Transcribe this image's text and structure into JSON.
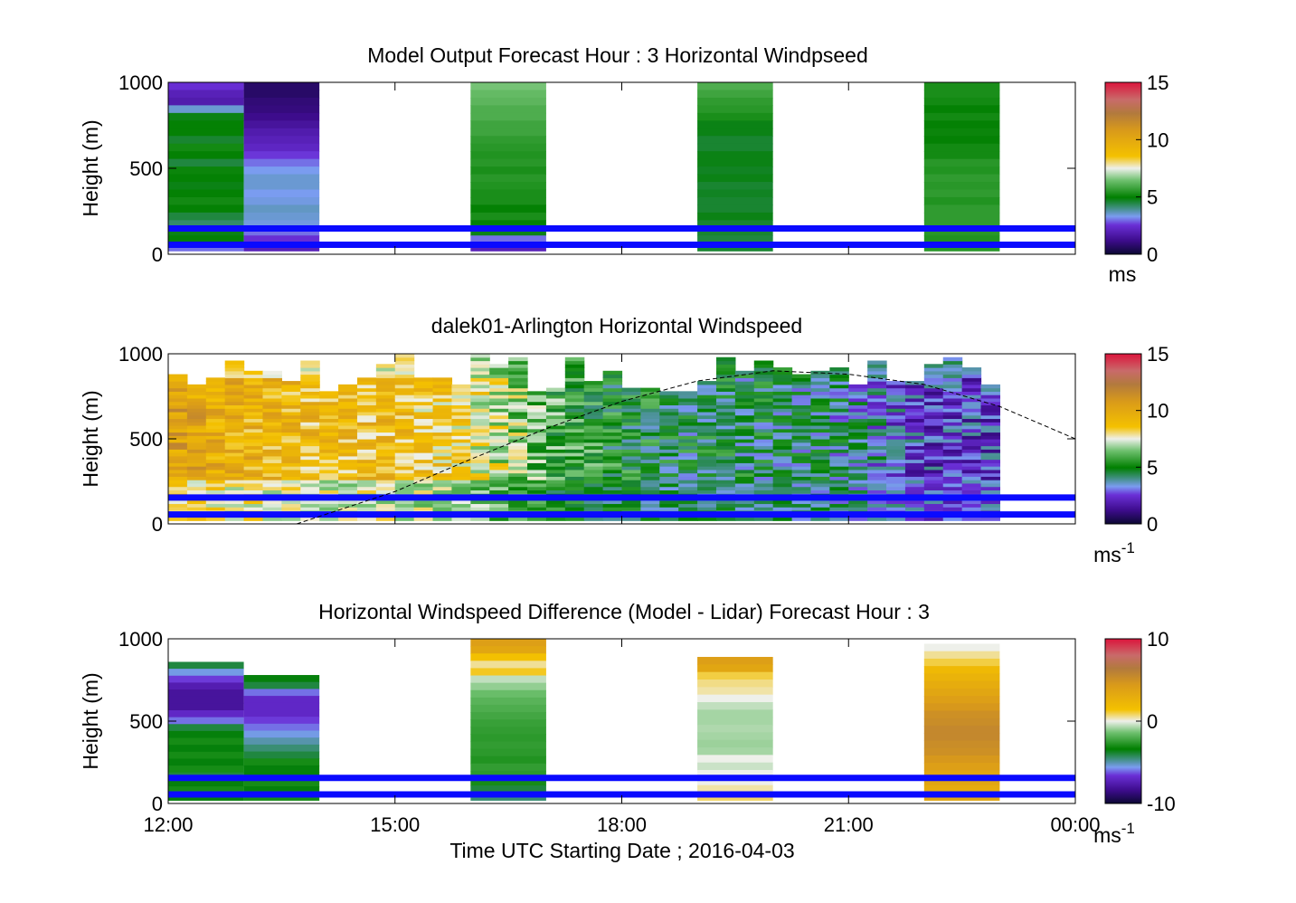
{
  "figure": {
    "xlabel": "Time UTC  Starting Date ; 2016-04-03",
    "x_ticks": [
      "12:00",
      "15:00",
      "18:00",
      "21:00",
      "00:00"
    ],
    "colors": {
      "reference_lines": "#0a0aff",
      "colormap": [
        "#0b0833",
        "#3d0c8c",
        "#6a2fd6",
        "#7a9cf0",
        "#3f8f7f",
        "#007f00",
        "#6fc06f",
        "#eef0ea",
        "#f4c100",
        "#b27a3d",
        "#c96a6a",
        "#dc143c"
      ]
    }
  },
  "chart_data": [
    {
      "type": "heatmap",
      "title": "Model Output   Forecast Hour : 3 Horizontal Windpseed",
      "ylabel": "Height (m)",
      "y_ticks": [
        "0",
        "500",
        "1000"
      ],
      "ylim": [
        0,
        1000
      ],
      "x_range_hours": [
        12,
        24
      ],
      "colorbar": {
        "ticks": [
          "0",
          "5",
          "10",
          "15"
        ],
        "range": [
          0,
          15
        ],
        "unit": "ms"
      },
      "reference_lines_m": [
        150,
        55
      ],
      "columns": [
        {
          "t0": 12.0,
          "t1": 13.0,
          "top": 1000,
          "bottom": 20,
          "values": [
            2.5,
            2.0,
            1.8,
            3.5,
            4.8,
            5.0,
            5.0,
            4.6,
            5.2,
            5.0,
            4.5,
            5.1,
            5.0,
            4.8,
            5.0,
            5.2,
            5.0,
            4.5,
            4.2,
            4.8,
            5.0,
            3.0
          ]
        },
        {
          "t0": 13.0,
          "t1": 14.0,
          "top": 1000,
          "bottom": 20,
          "values": [
            0.7,
            0.7,
            0.9,
            1.0,
            1.2,
            1.5,
            1.8,
            2.0,
            2.2,
            2.6,
            3.0,
            3.3,
            3.5,
            3.5,
            3.3,
            3.4,
            3.6,
            3.5,
            3.4,
            3.0,
            2.5,
            2.0
          ]
        },
        {
          "t0": 16.0,
          "t1": 17.0,
          "top": 1000,
          "bottom": 20,
          "values": [
            6.5,
            6.3,
            6.2,
            6.0,
            6.0,
            5.8,
            5.8,
            5.6,
            5.5,
            5.4,
            5.5,
            5.3,
            5.5,
            5.4,
            5.3,
            5.3,
            5.0,
            5.3,
            5.0,
            4.8,
            3.0,
            2.0
          ]
        },
        {
          "t0": 19.0,
          "t1": 20.0,
          "top": 1000,
          "bottom": 20,
          "values": [
            6.0,
            5.8,
            5.6,
            5.5,
            5.3,
            4.8,
            4.8,
            4.6,
            4.6,
            4.8,
            4.8,
            4.7,
            4.8,
            4.6,
            4.7,
            4.6,
            4.6,
            4.8,
            4.6,
            4.6,
            4.5,
            4.6
          ]
        },
        {
          "t0": 22.0,
          "t1": 23.0,
          "top": 1000,
          "bottom": 20,
          "values": [
            5.3,
            5.3,
            5.2,
            5.0,
            5.2,
            5.0,
            5.1,
            5.0,
            5.2,
            5.2,
            5.5,
            5.4,
            5.6,
            5.5,
            5.6,
            5.4,
            5.6,
            5.6,
            5.6,
            5.5,
            5.4,
            5.5
          ]
        }
      ]
    },
    {
      "type": "heatmap",
      "title": "dalek01-Arlington  Horizontal Windspeed",
      "ylabel": "Height (m)",
      "y_ticks": [
        "0",
        "500",
        "1000"
      ],
      "ylim": [
        0,
        1000
      ],
      "x_range_hours": [
        12,
        24
      ],
      "colorbar": {
        "ticks": [
          "0",
          "5",
          "10",
          "15"
        ],
        "range": [
          0,
          15
        ],
        "unit": "ms",
        "unit_exponent": "-1"
      },
      "reference_lines_m": [
        155,
        55
      ],
      "profiles_m_s": [
        {
          "t": 12.0,
          "speed": 10.5
        },
        {
          "t": 13.0,
          "speed": 9.5
        },
        {
          "t": 14.0,
          "speed": 9.0
        },
        {
          "t": 15.0,
          "speed": 9.0
        },
        {
          "t": 16.0,
          "speed": 8.0
        },
        {
          "t": 17.0,
          "speed": 6.0
        },
        {
          "t": 18.0,
          "speed": 5.0
        },
        {
          "t": 19.0,
          "speed": 4.5
        },
        {
          "t": 20.0,
          "speed": 4.5
        },
        {
          "t": 21.0,
          "speed": 4.0
        },
        {
          "t": 22.0,
          "speed": 2.5
        },
        {
          "t": 23.0,
          "speed": 2.5
        }
      ],
      "data_end_hour": 23.0,
      "boundary_layer_curve": [
        [
          13.7,
          0
        ],
        [
          15,
          190
        ],
        [
          16,
          380
        ],
        [
          17,
          560
        ],
        [
          18,
          720
        ],
        [
          19,
          840
        ],
        [
          20,
          900
        ],
        [
          21,
          880
        ],
        [
          22,
          820
        ],
        [
          23,
          690
        ],
        [
          24,
          500
        ]
      ]
    },
    {
      "type": "heatmap",
      "title": "Horizontal Windspeed Difference (Model - Lidar) Forecast Hour : 3",
      "ylabel": "Height (m)",
      "y_ticks": [
        "0",
        "500",
        "1000"
      ],
      "ylim": [
        0,
        1000
      ],
      "x_range_hours": [
        12,
        24
      ],
      "colorbar": {
        "ticks": [
          "-10",
          "0",
          "10"
        ],
        "range": [
          -10,
          10
        ],
        "unit": "ms",
        "unit_exponent": "-1"
      },
      "reference_lines_m": [
        155,
        55
      ],
      "columns": [
        {
          "t0": 12.0,
          "t1": 13.0,
          "top": 860,
          "bottom": 20,
          "values": [
            -4.0,
            -5.5,
            -6.5,
            -7.5,
            -8.0,
            -8.0,
            -8.0,
            -7.0,
            -6.0,
            -4.0,
            -3.5,
            -3.0,
            -3.5,
            -3.0,
            -3.5,
            -3.0,
            -4.0,
            -3.5,
            -3.0,
            -3.5
          ]
        },
        {
          "t0": 13.0,
          "t1": 14.0,
          "top": 780,
          "bottom": 20,
          "values": [
            -3.5,
            -4.0,
            -6.0,
            -7.0,
            -7.0,
            -7.0,
            -6.5,
            -6.0,
            -5.5,
            -5.0,
            -4.5,
            -4.0,
            -3.0,
            -3.5,
            -3.5,
            -3.0,
            -3.5,
            -3.0
          ]
        },
        {
          "t0": 16.0,
          "t1": 17.0,
          "top": 1000,
          "bottom": 20,
          "values": [
            4.0,
            3.5,
            1.5,
            0.5,
            1.2,
            -0.5,
            -1.0,
            -1.5,
            -1.8,
            -2.0,
            -2.2,
            -2.4,
            -2.5,
            -2.6,
            -2.5,
            -2.6,
            -2.8,
            -2.5,
            -2.6,
            -3.0,
            -4.0,
            -4.5
          ]
        },
        {
          "t0": 19.0,
          "t1": 20.0,
          "top": 890,
          "bottom": 20,
          "values": [
            4.0,
            3.5,
            1.0,
            0.6,
            0.4,
            0.0,
            -0.5,
            -0.8,
            -0.8,
            -0.7,
            -0.8,
            -0.9,
            -0.8,
            0.0,
            -0.4,
            0.0,
            0.0,
            0.4,
            0.8
          ]
        },
        {
          "t0": 22.0,
          "t1": 23.0,
          "top": 970,
          "bottom": 20,
          "values": [
            0.0,
            0.5,
            1.0,
            2.0,
            2.5,
            3.0,
            3.5,
            4.0,
            4.5,
            5.0,
            5.2,
            5.5,
            5.5,
            5.2,
            5.0,
            4.5,
            4.0,
            3.5,
            3.5,
            3.0,
            3.5
          ]
        }
      ]
    }
  ]
}
